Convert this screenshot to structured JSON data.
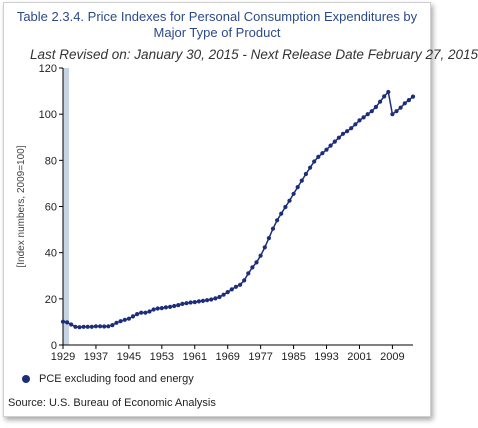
{
  "title_line1": "Table 2.3.4. Price Indexes for Personal Consumption Expenditures by",
  "title_line2": "Major Type of Product",
  "subtitle": "Last Revised on: January 30, 2015 - Next Release Date February 27, 2015",
  "legend_label": "PCE excluding food and energy",
  "source": "Source: U.S. Bureau of Economic  Analysis",
  "colors": {
    "series": "#1c2e7a",
    "highlight_band": "#c6d3e3",
    "axis": "#000000",
    "title": "#2b4a8a"
  },
  "chart_data": {
    "type": "line",
    "title": "Table 2.3.4. Price Indexes for Personal Consumption Expenditures by Major Type of Product",
    "subtitle": "Last Revised on: January 30, 2015 - Next Release Date February 27, 2015",
    "xlabel": "",
    "ylabel": "[Index numbers, 2009=100]",
    "xlim": [
      1929,
      2014
    ],
    "ylim": [
      0,
      120
    ],
    "yticks": [
      0,
      20,
      40,
      60,
      80,
      100,
      120
    ],
    "xticks": [
      1929,
      1937,
      1945,
      1953,
      1961,
      1969,
      1977,
      1985,
      1993,
      2001,
      2009
    ],
    "highlight_band": [
      1929,
      1929.8
    ],
    "legend_position": "bottom-left",
    "grid": false,
    "series": [
      {
        "name": "PCE excluding food and energy",
        "x": [
          1929,
          1930,
          1931,
          1932,
          1933,
          1934,
          1935,
          1936,
          1937,
          1938,
          1939,
          1940,
          1941,
          1942,
          1943,
          1944,
          1945,
          1946,
          1947,
          1948,
          1949,
          1950,
          1951,
          1952,
          1953,
          1954,
          1955,
          1956,
          1957,
          1958,
          1959,
          1960,
          1961,
          1962,
          1963,
          1964,
          1965,
          1966,
          1967,
          1968,
          1969,
          1970,
          1971,
          1972,
          1973,
          1974,
          1975,
          1976,
          1977,
          1978,
          1979,
          1980,
          1981,
          1982,
          1983,
          1984,
          1985,
          1986,
          1987,
          1988,
          1989,
          1990,
          1991,
          1992,
          1993,
          1994,
          1995,
          1996,
          1997,
          1998,
          1999,
          2000,
          2001,
          2002,
          2003,
          2004,
          2005,
          2006,
          2007,
          2008,
          2009,
          2010,
          2011,
          2012,
          2013,
          2014
        ],
        "values": [
          10.1,
          9.8,
          8.9,
          7.9,
          7.7,
          7.9,
          7.9,
          7.9,
          8.1,
          8.1,
          8.0,
          8.1,
          8.6,
          9.6,
          10.3,
          10.9,
          11.4,
          12.4,
          13.4,
          14.0,
          14.0,
          14.5,
          15.4,
          15.8,
          16.0,
          16.3,
          16.5,
          16.9,
          17.3,
          17.8,
          18.1,
          18.4,
          18.6,
          18.9,
          19.1,
          19.4,
          19.7,
          20.2,
          20.8,
          21.8,
          22.9,
          24.1,
          25.2,
          26.1,
          28.0,
          31.0,
          33.6,
          35.8,
          38.7,
          42.3,
          46.3,
          50.4,
          54.0,
          56.9,
          59.8,
          62.5,
          65.5,
          68.4,
          71.2,
          74.1,
          76.8,
          79.5,
          81.5,
          83.1,
          84.6,
          86.4,
          88.1,
          89.8,
          91.5,
          92.6,
          93.9,
          95.6,
          97.3,
          98.6,
          100.0,
          101.3,
          103.1,
          105.4,
          107.7,
          109.6,
          100.0,
          101.3,
          102.8,
          104.7,
          106.1,
          107.6
        ]
      }
    ]
  }
}
